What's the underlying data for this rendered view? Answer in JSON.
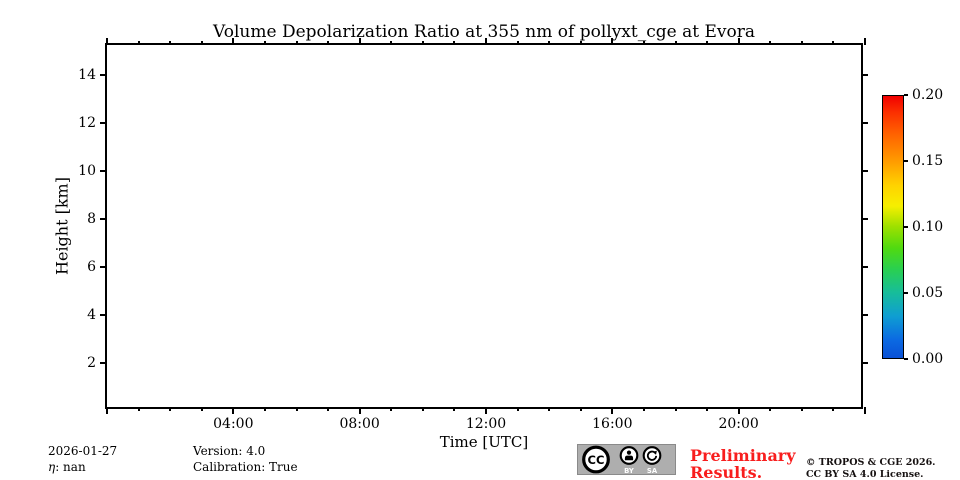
{
  "chart_data": {
    "type": "heatmap",
    "title": "Volume Depolarization Ratio at 355 nm of pollyxt_cge at Evora",
    "xlabel": "Time [UTC]",
    "ylabel": "Height [km]",
    "xlim_hours": [
      0,
      24
    ],
    "x_minor_tick_step_hours": 1,
    "x_major_tick_interval_hours": 4,
    "x_labeled_ticks": [
      {
        "hour": 4,
        "label": "04:00"
      },
      {
        "hour": 8,
        "label": "08:00"
      },
      {
        "hour": 12,
        "label": "12:00"
      },
      {
        "hour": 16,
        "label": "16:00"
      },
      {
        "hour": 20,
        "label": "20:00"
      }
    ],
    "ylim_km": [
      0,
      15.25
    ],
    "y_major_ticks_km": [
      2,
      4,
      6,
      8,
      10,
      12,
      14
    ],
    "values": [],
    "grid": false,
    "colorbar": {
      "min": 0.0,
      "max": 0.2,
      "tick_labels_top_to_bottom": [
        "0.20",
        "0.15",
        "0.10",
        "0.05",
        "0.00"
      ],
      "colormap": "jet-like",
      "gradient_top_to_bottom": [
        {
          "pos": 0.0,
          "color": "#f10000"
        },
        {
          "pos": 0.06,
          "color": "#fb2e00"
        },
        {
          "pos": 0.14,
          "color": "#ff5f00"
        },
        {
          "pos": 0.25,
          "color": "#ff9c00"
        },
        {
          "pos": 0.34,
          "color": "#ffd200"
        },
        {
          "pos": 0.42,
          "color": "#f6ef00"
        },
        {
          "pos": 0.5,
          "color": "#9ce000"
        },
        {
          "pos": 0.58,
          "color": "#50da10"
        },
        {
          "pos": 0.66,
          "color": "#2ad04f"
        },
        {
          "pos": 0.75,
          "color": "#17bd9a"
        },
        {
          "pos": 0.84,
          "color": "#0f9ed2"
        },
        {
          "pos": 0.93,
          "color": "#0b6ae2"
        },
        {
          "pos": 1.0,
          "color": "#0a51d6"
        }
      ]
    }
  },
  "annotations": {
    "date": "2026-01-27",
    "eta_symbol": "η",
    "eta_rest": ": nan",
    "version": "Version: 4.0",
    "calibration": "Calibration: True",
    "preliminary": "Preliminary\nResults.",
    "copyright_line1": "© TROPOS & CGE 2026.",
    "copyright_line2": "CC BY SA 4.0 License."
  },
  "badge": {
    "cc": "CC",
    "by": "BY",
    "sa": "SA"
  },
  "colors": {
    "axis": "#000000",
    "preliminary_red": "#f81e1e",
    "copyright_text": "#151010",
    "badge_background": "#aeaeae"
  }
}
